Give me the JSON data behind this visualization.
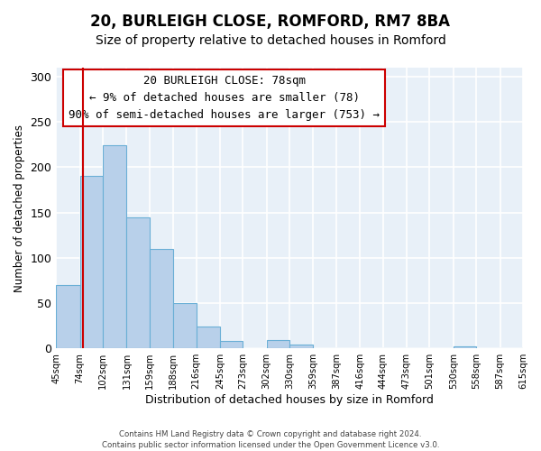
{
  "title": "20, BURLEIGH CLOSE, ROMFORD, RM7 8BA",
  "subtitle": "Size of property relative to detached houses in Romford",
  "xlabel": "Distribution of detached houses by size in Romford",
  "ylabel": "Number of detached properties",
  "bar_values": [
    70,
    190,
    224,
    145,
    110,
    50,
    24,
    8,
    0,
    9,
    4,
    0,
    0,
    0,
    0,
    0,
    0,
    2,
    0,
    0
  ],
  "bin_edges": [
    45,
    74,
    102,
    131,
    159,
    188,
    216,
    245,
    273,
    302,
    330,
    359,
    387,
    416,
    444,
    473,
    501,
    530,
    558,
    587,
    615
  ],
  "tick_labels": [
    "45sqm",
    "74sqm",
    "102sqm",
    "131sqm",
    "159sqm",
    "188sqm",
    "216sqm",
    "245sqm",
    "273sqm",
    "302sqm",
    "330sqm",
    "359sqm",
    "387sqm",
    "416sqm",
    "444sqm",
    "473sqm",
    "501sqm",
    "530sqm",
    "558sqm",
    "587sqm",
    "615sqm"
  ],
  "bar_color": "#b8d0ea",
  "bar_edge_color": "#6aafd6",
  "background_color": "#e8f0f8",
  "grid_color": "#ffffff",
  "annotation_box_text": "20 BURLEIGH CLOSE: 78sqm\n← 9% of detached houses are smaller (78)\n90% of semi-detached houses are larger (753) →",
  "annotation_box_edge_color": "#cc0000",
  "vline_x": 78,
  "vline_color": "#cc0000",
  "ylim": [
    0,
    310
  ],
  "yticks": [
    0,
    50,
    100,
    150,
    200,
    250,
    300
  ],
  "footnote1": "Contains HM Land Registry data © Crown copyright and database right 2024.",
  "footnote2": "Contains public sector information licensed under the Open Government Licence v3.0.",
  "title_fontsize": 12,
  "subtitle_fontsize": 10,
  "annotation_fontsize": 9
}
